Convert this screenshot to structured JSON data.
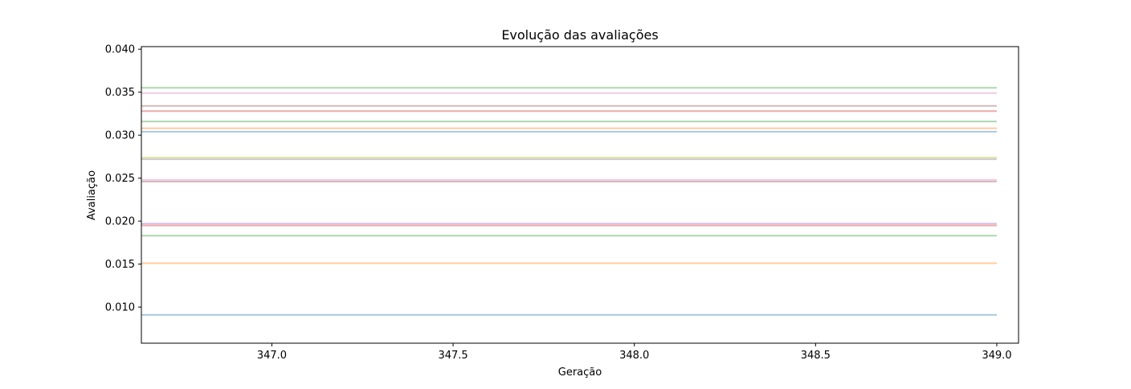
{
  "chart_data": {
    "type": "line",
    "title": "Evolução das avaliações",
    "xlabel": "Geração",
    "ylabel": "Avaliação",
    "xlim": [
      346.64,
      349.06
    ],
    "ylim": [
      0.0058,
      0.0403
    ],
    "xticks": [
      347.0,
      347.5,
      348.0,
      348.5,
      349.0
    ],
    "xtick_labels": [
      "347.0",
      "347.5",
      "348.0",
      "348.5",
      "349.0"
    ],
    "yticks": [
      0.01,
      0.015,
      0.02,
      0.025,
      0.03,
      0.035,
      0.04
    ],
    "ytick_labels": [
      "0.010",
      "0.015",
      "0.020",
      "0.025",
      "0.030",
      "0.035",
      "0.040"
    ],
    "grid": false,
    "x": [
      346.64,
      349.0
    ],
    "series": [
      {
        "values": [
          0.0355,
          0.0355
        ],
        "color": "#2ca02c"
      },
      {
        "values": [
          0.0349,
          0.0349
        ],
        "color": "#e377c2"
      },
      {
        "values": [
          0.0334,
          0.0334
        ],
        "color": "#8c564b"
      },
      {
        "values": [
          0.0328,
          0.0328
        ],
        "color": "#d62728"
      },
      {
        "values": [
          0.0316,
          0.0316
        ],
        "color": "#2ca02c"
      },
      {
        "values": [
          0.0308,
          0.0308
        ],
        "color": "#ff7f0e"
      },
      {
        "values": [
          0.0304,
          0.0304
        ],
        "color": "#1f77b4"
      },
      {
        "values": [
          0.0274,
          0.0274
        ],
        "color": "#bcbd22"
      },
      {
        "values": [
          0.0272,
          0.0272
        ],
        "color": "#7f7f7f"
      },
      {
        "values": [
          0.0248,
          0.0248
        ],
        "color": "#e377c2"
      },
      {
        "values": [
          0.0246,
          0.0246
        ],
        "color": "#8c564b"
      },
      {
        "values": [
          0.0197,
          0.0197
        ],
        "color": "#9467bd"
      },
      {
        "values": [
          0.0195,
          0.0195
        ],
        "color": "#d62728"
      },
      {
        "values": [
          0.0183,
          0.0183
        ],
        "color": "#2ca02c"
      },
      {
        "values": [
          0.0151,
          0.0151
        ],
        "color": "#ff7f0e"
      },
      {
        "values": [
          0.0091,
          0.0091
        ],
        "color": "#1f77b4"
      }
    ]
  }
}
